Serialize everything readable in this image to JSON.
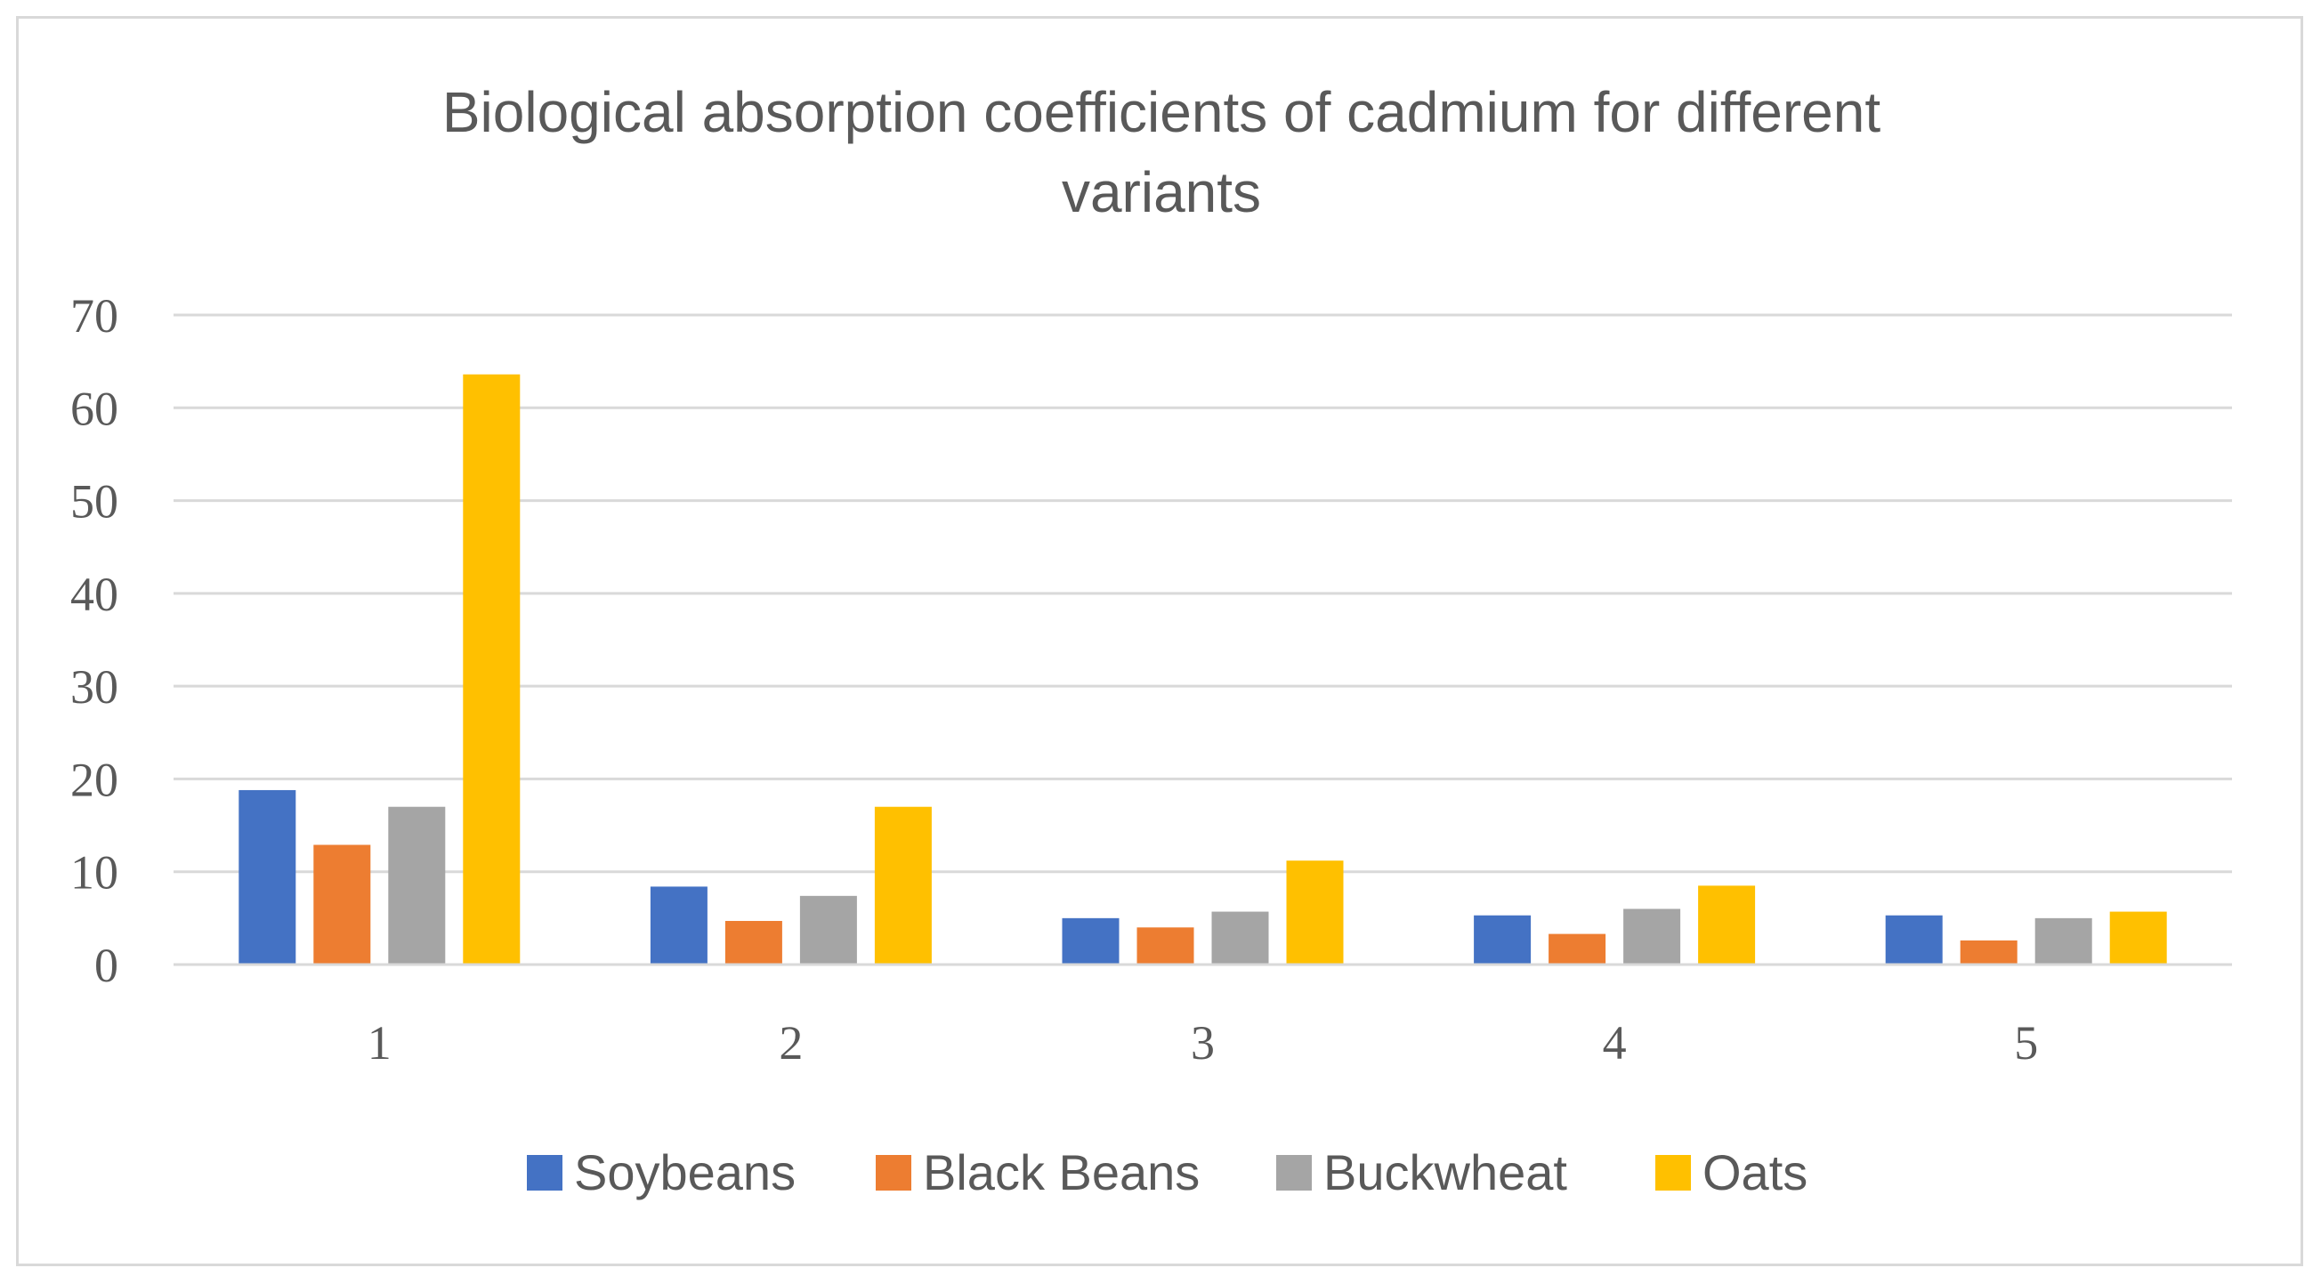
{
  "chart_data": {
    "type": "bar",
    "title": "Biological absorption coefficients of cadmium for different variants",
    "title_lines": [
      "Biological absorption coefficients of cadmium for different",
      "variants"
    ],
    "xlabel": "",
    "ylabel": "",
    "categories": [
      "1",
      "2",
      "3",
      "4",
      "5"
    ],
    "ylim": [
      0,
      70
    ],
    "yticks": [
      0,
      10,
      20,
      30,
      40,
      50,
      60,
      70
    ],
    "grid": true,
    "legend_position": "bottom",
    "series": [
      {
        "name": "Soybeans",
        "color": "#4472c4",
        "values": [
          18.8,
          8.4,
          5.0,
          5.3,
          5.3
        ]
      },
      {
        "name": "Black Beans",
        "color": "#ed7d31",
        "values": [
          12.9,
          4.7,
          4.0,
          3.3,
          2.6
        ]
      },
      {
        "name": "Buckwheat",
        "color": "#a5a5a5",
        "values": [
          17.0,
          7.4,
          5.7,
          6.0,
          5.0
        ]
      },
      {
        "name": "Oats",
        "color": "#ffc000",
        "values": [
          63.6,
          17.0,
          11.2,
          8.5,
          5.7
        ]
      }
    ]
  }
}
